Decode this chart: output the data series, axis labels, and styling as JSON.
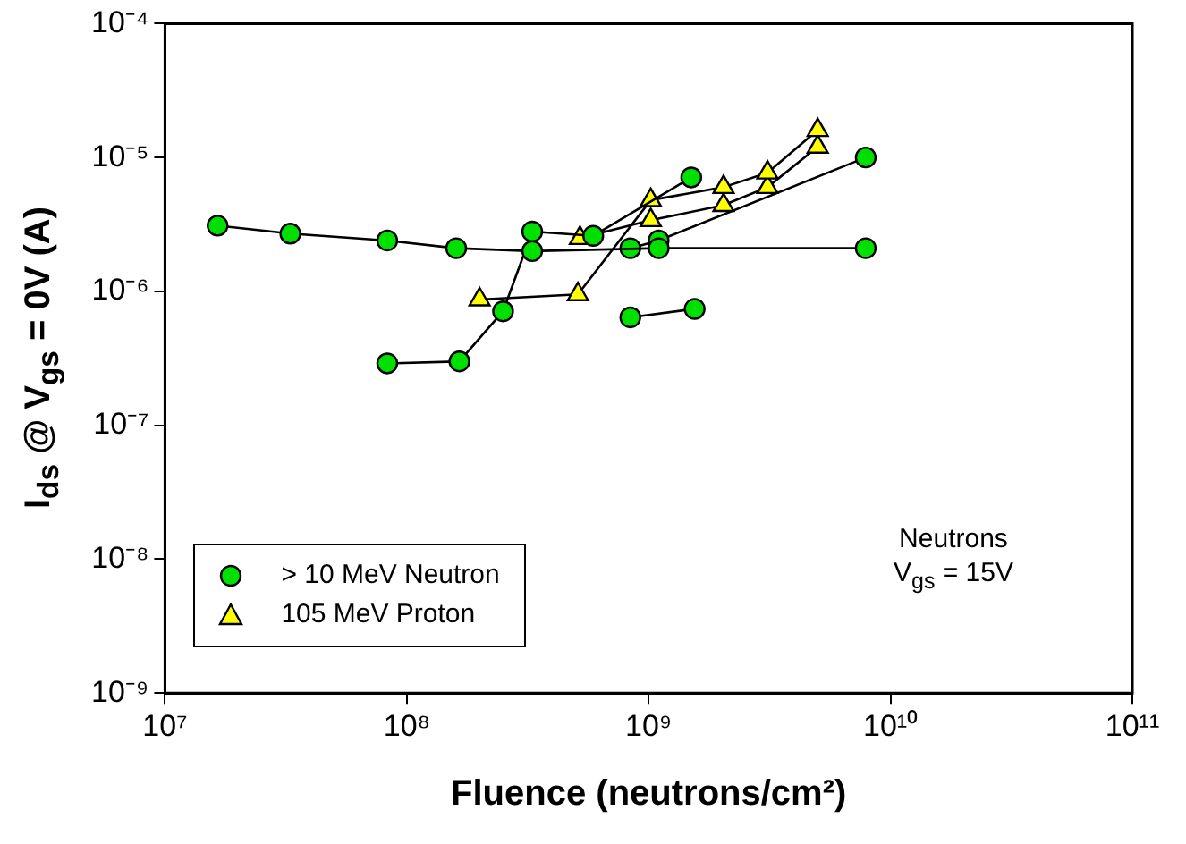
{
  "chart_data": {
    "type": "line",
    "xlabel": "Fluence (neutrons/cm²)",
    "ylabel": "I$_{ds}$ @ V$_{gs}$ = 0V (A)",
    "log": "xy",
    "grid": false,
    "legend": "bottom left",
    "line_style": "solid",
    "xlim": [
      10000000.0,
      100000000000.0
    ],
    "ylim": [
      1e-09,
      0.0001
    ],
    "xticks": [
      {
        "value": 10000000.0,
        "label": "10⁷"
      },
      {
        "value": 100000000.0,
        "label": "10⁸"
      },
      {
        "value": 1000000000.0,
        "label": "10⁹"
      },
      {
        "value": 10000000000.0,
        "label": "10¹⁰"
      },
      {
        "value": 100000000000.0,
        "label": "10¹¹"
      }
    ],
    "yticks": [
      {
        "value": 1e-09,
        "label": "10⁻⁹"
      },
      {
        "value": 1e-08,
        "label": "10⁻⁸"
      },
      {
        "value": 1e-07,
        "label": "10⁻⁷"
      },
      {
        "value": 1e-06,
        "label": "10⁻⁶"
      },
      {
        "value": 1e-05,
        "label": "10⁻⁵"
      },
      {
        "value": 0.0001,
        "label": "10⁻⁴"
      }
    ],
    "annotations": [
      "Neutrons",
      "V$_{gs}$ = 15V"
    ],
    "series": [
      {
        "name": "> 10 MeV Neutron",
        "color": "#00e000",
        "marker": "circle",
        "x": [
          16500000.0,
          33000000.0,
          83000000.0,
          160000000.0,
          330000000.0,
          1100000000.0,
          7900000000.0
        ],
        "values": [
          3.1e-06,
          2.7e-06,
          2.4e-06,
          2.1e-06,
          2e-06,
          2.1e-06,
          2.1e-06
        ]
      },
      {
        "color": "#00e000",
        "marker": "circle",
        "x": [
          83000000.0,
          165000000.0,
          250000000.0,
          330000000.0,
          590000000.0,
          1500000000.0
        ],
        "values": [
          2.9e-07,
          3e-07,
          7.1e-07,
          2.8e-06,
          2.6e-06,
          7.1e-06
        ]
      },
      {
        "color": "#00e000",
        "marker": "circle",
        "x": [
          840000000.0,
          1550000000.0
        ],
        "values": [
          6.4e-07,
          7.4e-07
        ]
      },
      {
        "color": "#00e000",
        "marker": "circle",
        "x": [
          840000000.0,
          1100000000.0,
          7900000000.0
        ],
        "values": [
          2.1e-06,
          2.4e-06,
          1e-05
        ]
      },
      {
        "name": "105 MeV Proton",
        "color": "#ffff00",
        "marker": "triangle",
        "x": [
          200000000.0,
          510000000.0,
          1020000000.0,
          2040000000.0,
          3100000000.0,
          5000000000.0
        ],
        "values": [
          8.7e-07,
          9.5e-07,
          4.8e-06,
          6e-06,
          7.7e-06,
          1.6e-05
        ]
      },
      {
        "color": "#ffff00",
        "marker": "triangle",
        "x": [
          520000000.0,
          1020000000.0,
          2040000000.0,
          3100000000.0,
          5000000000.0
        ],
        "values": [
          2.5e-06,
          3.4e-06,
          4.4e-06,
          6e-06,
          1.2e-05
        ]
      }
    ]
  }
}
